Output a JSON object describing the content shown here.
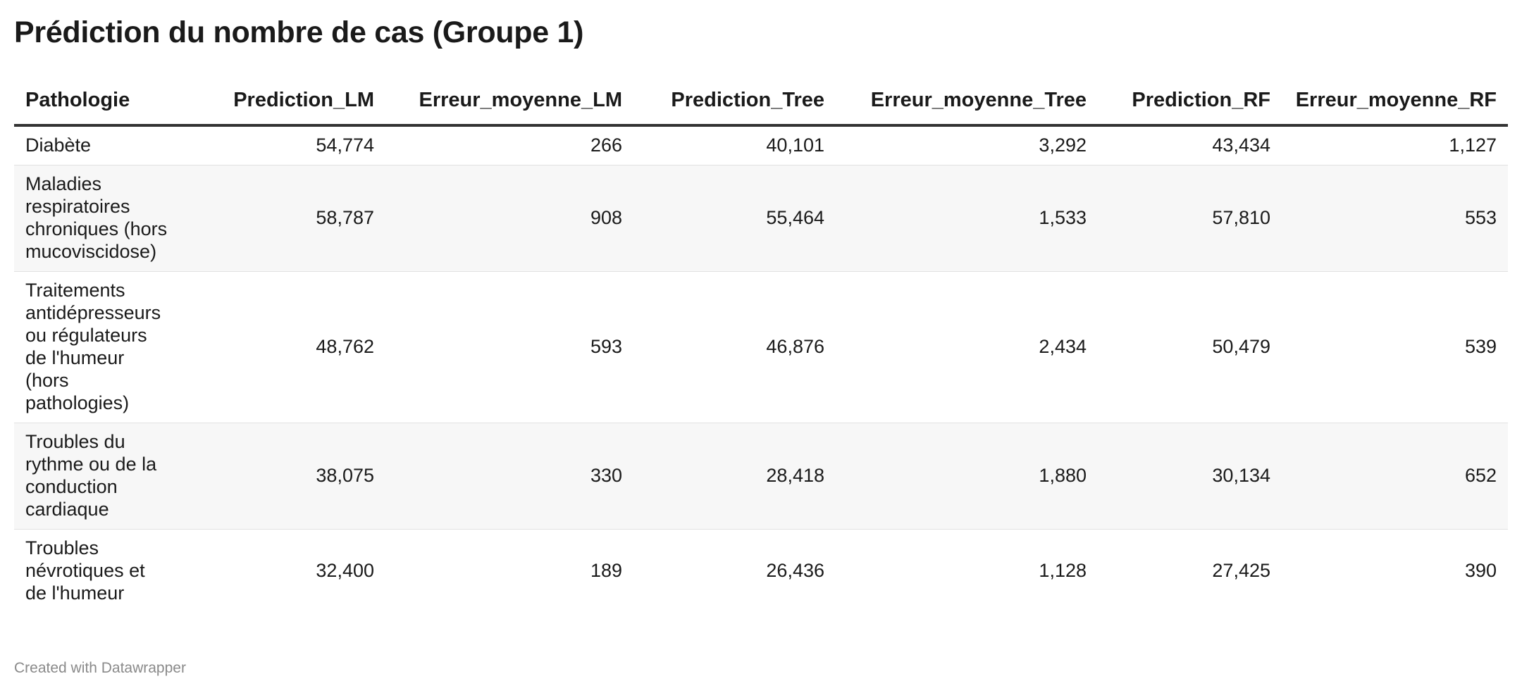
{
  "chart_data": {
    "type": "table",
    "title": "Prédiction du nombre de cas (Groupe 1)",
    "columns": [
      "Pathologie",
      "Prediction_LM",
      "Erreur_moyenne_LM",
      "Prediction_Tree",
      "Erreur_moyenne_Tree",
      "Prediction_RF",
      "Erreur_moyenne_RF"
    ],
    "rows": [
      [
        "Diabète",
        "54,774",
        "266",
        "40,101",
        "3,292",
        "43,434",
        "1,127"
      ],
      [
        "Maladies respiratoires chroniques (hors mucoviscidose)",
        "58,787",
        "908",
        "55,464",
        "1,533",
        "57,810",
        "553"
      ],
      [
        "Traitements antidépresseurs ou régulateurs de l'humeur (hors pathologies)",
        "48,762",
        "593",
        "46,876",
        "2,434",
        "50,479",
        "539"
      ],
      [
        "Troubles du rythme ou de la conduction cardiaque",
        "38,075",
        "330",
        "28,418",
        "1,880",
        "30,134",
        "652"
      ],
      [
        "Troubles névrotiques et de l'humeur",
        "32,400",
        "189",
        "26,436",
        "1,128",
        "27,425",
        "390"
      ]
    ]
  },
  "footer": {
    "credit": "Created with Datawrapper"
  }
}
